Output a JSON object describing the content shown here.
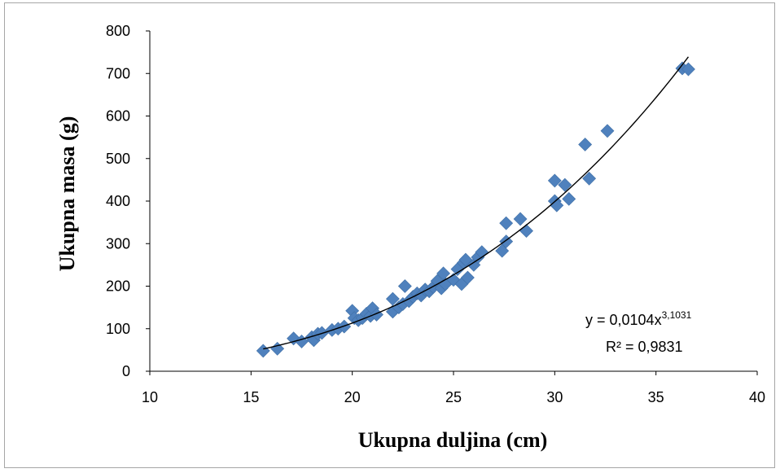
{
  "chart_data": {
    "type": "scatter",
    "title": "",
    "xlabel": "Ukupna duljina (cm)",
    "ylabel": "Ukupna masa (g)",
    "xlim": [
      10,
      40
    ],
    "ylim": [
      0,
      800
    ],
    "x_ticks": [
      "10",
      "15",
      "20",
      "25",
      "30",
      "35",
      "40"
    ],
    "y_ticks": [
      "0",
      "100",
      "200",
      "300",
      "400",
      "500",
      "600",
      "700",
      "800"
    ],
    "grid": false,
    "legend": "none",
    "marker_color": "#4F81BD",
    "trendline": {
      "type": "power",
      "a": 0.0104,
      "b": 3.1031,
      "equation_prefix": "y = 0,0104x",
      "equation_exponent": "3,1031",
      "r_squared_label": "R² = 0,9831"
    },
    "points": [
      [
        15.6,
        48
      ],
      [
        16.3,
        53
      ],
      [
        17.1,
        77
      ],
      [
        17.5,
        70
      ],
      [
        18.0,
        80
      ],
      [
        18.1,
        73
      ],
      [
        18.3,
        88
      ],
      [
        18.5,
        90
      ],
      [
        19.0,
        97
      ],
      [
        19.3,
        100
      ],
      [
        19.6,
        105
      ],
      [
        20.0,
        142
      ],
      [
        20.1,
        125
      ],
      [
        20.3,
        120
      ],
      [
        20.5,
        125
      ],
      [
        20.7,
        135
      ],
      [
        20.9,
        130
      ],
      [
        21.0,
        148
      ],
      [
        21.2,
        133
      ],
      [
        22.0,
        170
      ],
      [
        22.0,
        140
      ],
      [
        22.3,
        150
      ],
      [
        22.5,
        158
      ],
      [
        22.6,
        200
      ],
      [
        22.8,
        165
      ],
      [
        23.0,
        175
      ],
      [
        23.2,
        183
      ],
      [
        23.4,
        178
      ],
      [
        23.6,
        192
      ],
      [
        23.8,
        188
      ],
      [
        24.0,
        198
      ],
      [
        24.2,
        212
      ],
      [
        24.4,
        195
      ],
      [
        24.5,
        230
      ],
      [
        24.6,
        205
      ],
      [
        25.0,
        215
      ],
      [
        25.2,
        240
      ],
      [
        25.4,
        205
      ],
      [
        25.5,
        255
      ],
      [
        25.6,
        262
      ],
      [
        25.7,
        220
      ],
      [
        26.0,
        250
      ],
      [
        26.2,
        268
      ],
      [
        26.4,
        280
      ],
      [
        27.4,
        283
      ],
      [
        27.6,
        348
      ],
      [
        27.6,
        305
      ],
      [
        28.3,
        358
      ],
      [
        28.6,
        330
      ],
      [
        30.0,
        448
      ],
      [
        30.0,
        400
      ],
      [
        30.1,
        390
      ],
      [
        30.5,
        438
      ],
      [
        30.7,
        405
      ],
      [
        31.5,
        533
      ],
      [
        31.7,
        453
      ],
      [
        32.6,
        565
      ],
      [
        36.3,
        712
      ],
      [
        36.6,
        710
      ]
    ]
  }
}
